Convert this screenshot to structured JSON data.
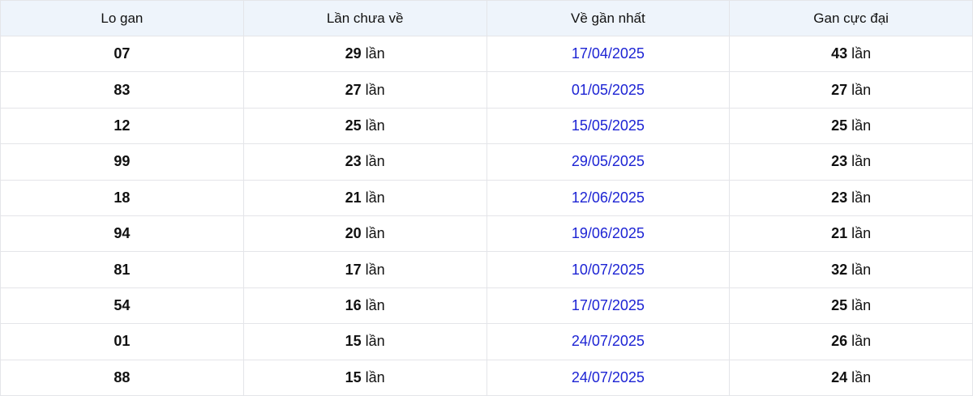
{
  "colors": {
    "header_bg": "#eef4fb",
    "border": "#e4e5e9",
    "date_link": "#1d24d4",
    "text": "#111111"
  },
  "table": {
    "unit_label": "lần",
    "headers": [
      {
        "key": "lo_gan",
        "label": "Lo gan"
      },
      {
        "key": "lan_chua_ve",
        "label": "Lần chưa về"
      },
      {
        "key": "ve_gan_nhat",
        "label": "Về gần nhất"
      },
      {
        "key": "gan_cuc_dai",
        "label": "Gan cực đại"
      }
    ],
    "rows": [
      {
        "lo_gan": "07",
        "lan_chua_ve": "29",
        "ve_gan_nhat": "17/04/2025",
        "gan_cuc_dai": "43"
      },
      {
        "lo_gan": "83",
        "lan_chua_ve": "27",
        "ve_gan_nhat": "01/05/2025",
        "gan_cuc_dai": "27"
      },
      {
        "lo_gan": "12",
        "lan_chua_ve": "25",
        "ve_gan_nhat": "15/05/2025",
        "gan_cuc_dai": "25"
      },
      {
        "lo_gan": "99",
        "lan_chua_ve": "23",
        "ve_gan_nhat": "29/05/2025",
        "gan_cuc_dai": "23"
      },
      {
        "lo_gan": "18",
        "lan_chua_ve": "21",
        "ve_gan_nhat": "12/06/2025",
        "gan_cuc_dai": "23"
      },
      {
        "lo_gan": "94",
        "lan_chua_ve": "20",
        "ve_gan_nhat": "19/06/2025",
        "gan_cuc_dai": "21"
      },
      {
        "lo_gan": "81",
        "lan_chua_ve": "17",
        "ve_gan_nhat": "10/07/2025",
        "gan_cuc_dai": "32"
      },
      {
        "lo_gan": "54",
        "lan_chua_ve": "16",
        "ve_gan_nhat": "17/07/2025",
        "gan_cuc_dai": "25"
      },
      {
        "lo_gan": "01",
        "lan_chua_ve": "15",
        "ve_gan_nhat": "24/07/2025",
        "gan_cuc_dai": "26"
      },
      {
        "lo_gan": "88",
        "lan_chua_ve": "15",
        "ve_gan_nhat": "24/07/2025",
        "gan_cuc_dai": "24"
      }
    ]
  }
}
